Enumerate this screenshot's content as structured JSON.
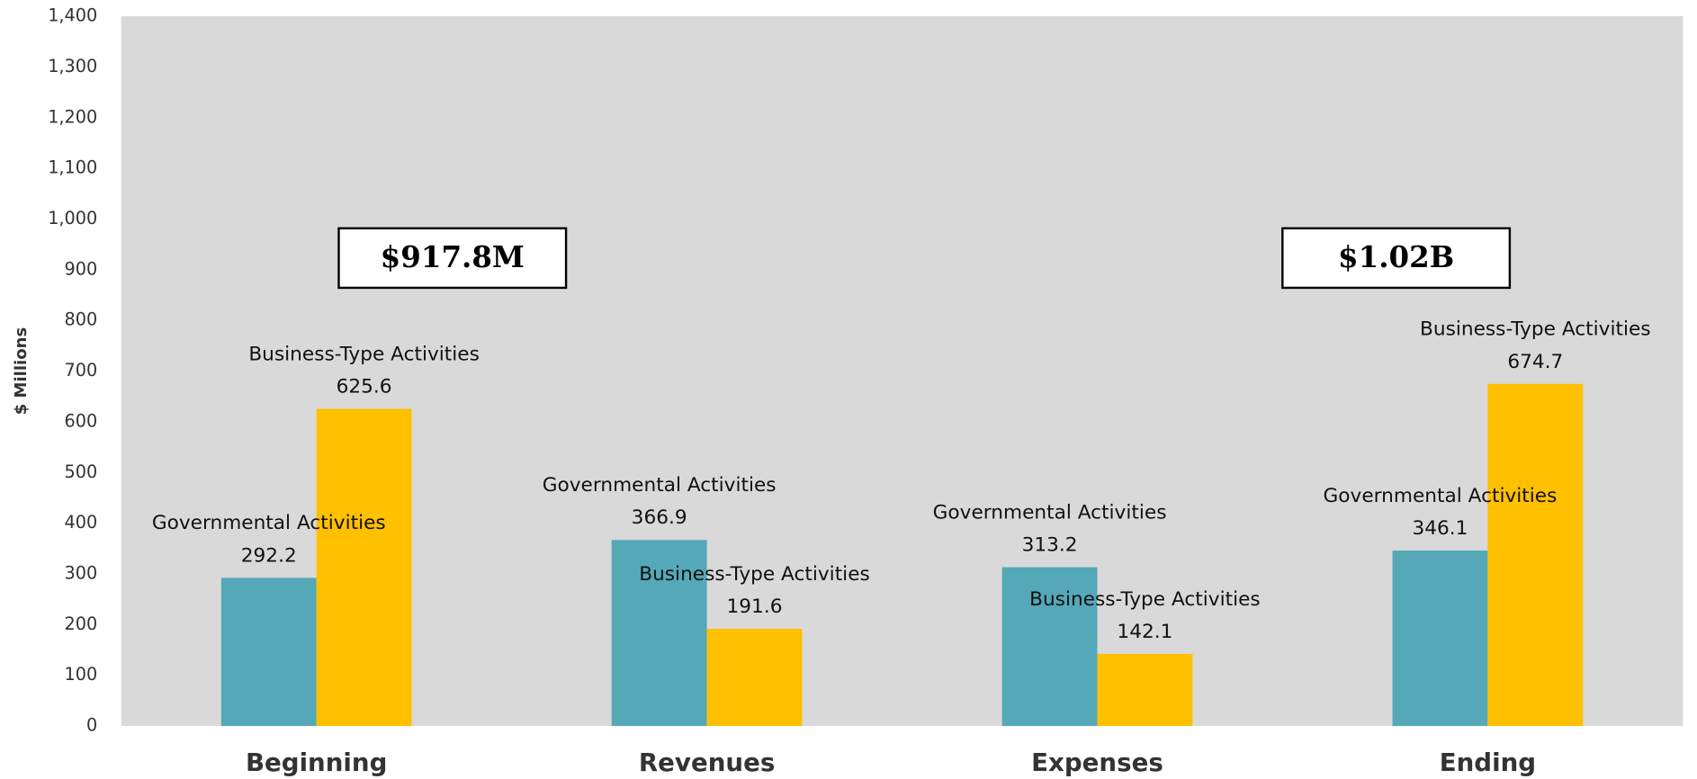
{
  "chart_data": {
    "type": "bar",
    "y_label": "$ Millions",
    "categories": [
      "Beginning",
      "Revenues",
      "Expenses",
      "Ending"
    ],
    "series": [
      {
        "name": "Governmental Activities",
        "color": "#55a8b8",
        "values": [
          292.2,
          366.9,
          313.2,
          346.1
        ]
      },
      {
        "name": "Business-Type Activities",
        "color": "#ffc000",
        "values": [
          625.6,
          191.6,
          142.1,
          674.7
        ]
      }
    ],
    "annotations": [
      "$917.8M",
      "$1.02B"
    ],
    "ylim": [
      0,
      1400
    ],
    "yticks": [
      0,
      100,
      200,
      300,
      400,
      500,
      600,
      700,
      800,
      900,
      {
        "value": 1000,
        "label": "1,000"
      },
      {
        "value": 1100,
        "label": "1,100"
      },
      {
        "value": 1200,
        "label": "1,200"
      },
      {
        "value": 1300,
        "label": "1,300"
      },
      {
        "value": 1400,
        "label": "1,400"
      }
    ],
    "grid": false
  }
}
